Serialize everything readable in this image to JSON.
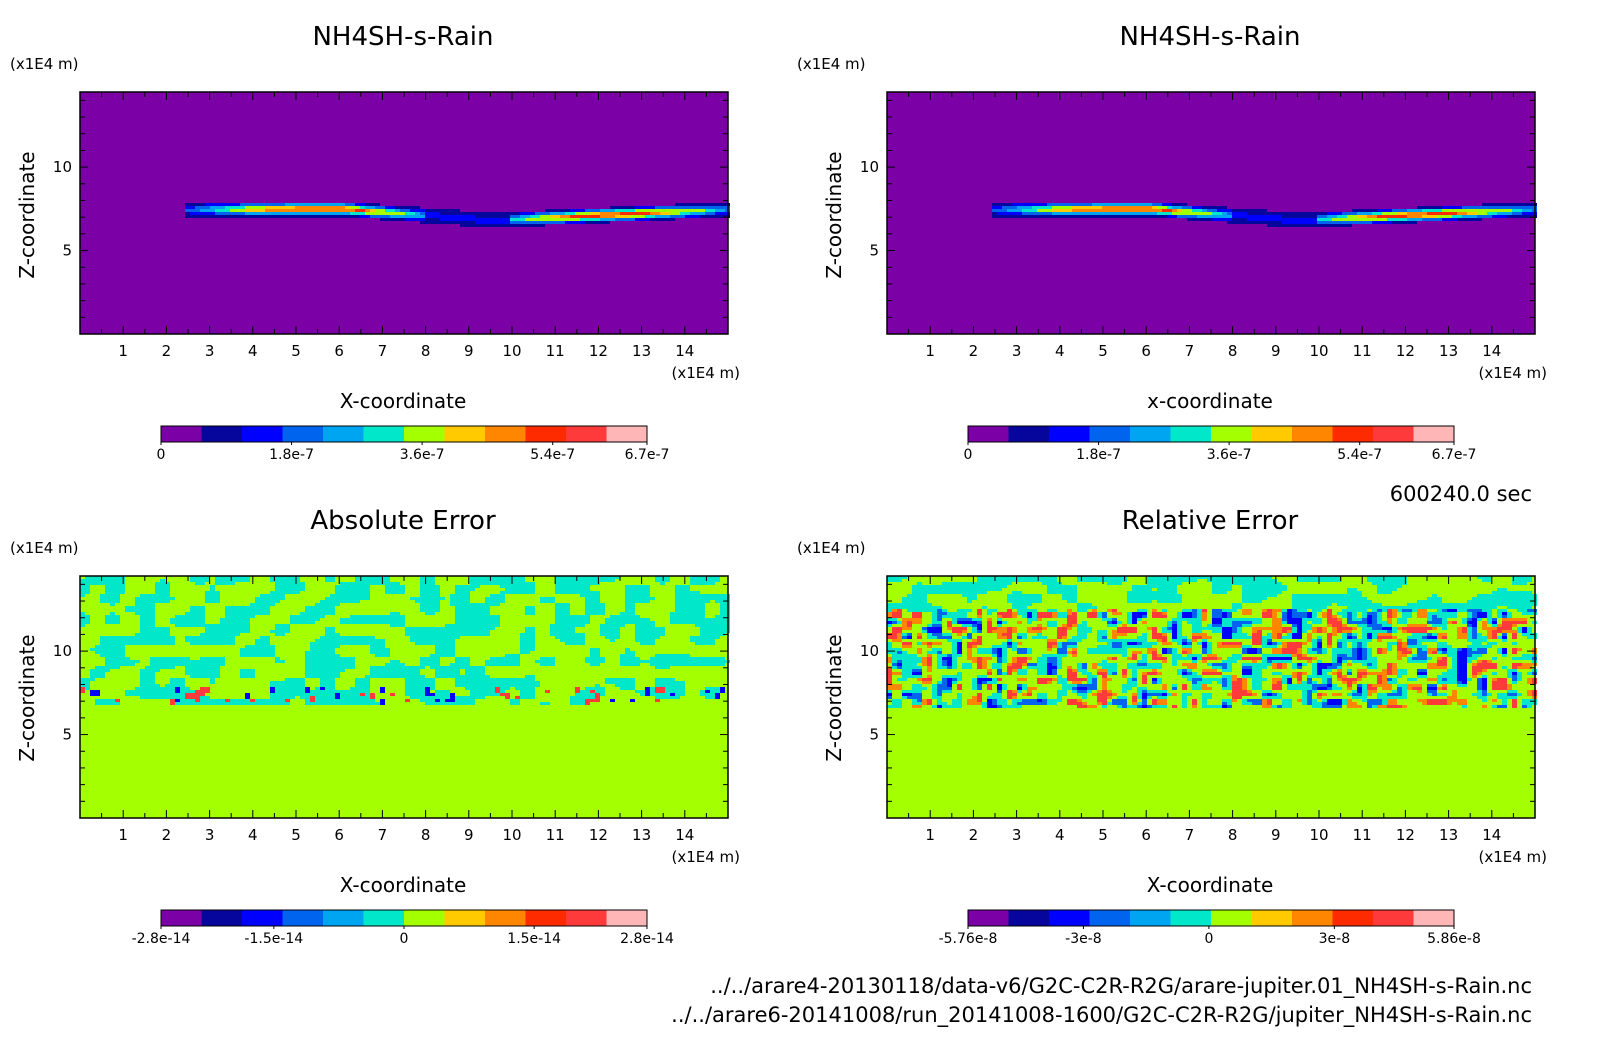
{
  "colormap": [
    "#7b00a6",
    "#06059c",
    "#0000ff",
    "#0064ee",
    "#00a5f2",
    "#00e8c9",
    "#a4ff00",
    "#ffca00",
    "#ff8600",
    "#ff2b00",
    "#ff3a3a",
    "#ffb6b6"
  ],
  "meta": {
    "time_label": "600240.0 sec",
    "file1": "../../arare4-20130118/data-v6/G2C-C2R-R2G/arare-jupiter.01_NH4SH-s-Rain.nc",
    "file2": "../../arare6-20141008/run_20141008-1600/G2C-C2R-R2G/jupiter_NH4SH-s-Rain.nc"
  },
  "chart_data": [
    {
      "type": "heatmap",
      "title": "NH4SH-s-Rain",
      "xlabel": "X-coordinate",
      "ylabel": "Z-coordinate",
      "unit": "(x1E4 m)",
      "xlim": [
        0,
        15
      ],
      "ylim": [
        0,
        14.5
      ],
      "xticks": [
        "1",
        "2",
        "3",
        "4",
        "5",
        "6",
        "7",
        "8",
        "9",
        "10",
        "11",
        "12",
        "13",
        "14"
      ],
      "yticks": [
        "5",
        "10"
      ],
      "field": "rain_band",
      "background_level": 0,
      "colorbar": {
        "min": 0,
        "max": 6.7e-07,
        "tick_labels": [
          "0",
          "1.8e-7",
          "3.6e-7",
          "5.4e-7",
          "6.7e-7"
        ]
      }
    },
    {
      "type": "heatmap",
      "title": "NH4SH-s-Rain",
      "xlabel": "x-coordinate",
      "ylabel": "Z-coordinate",
      "unit": "(x1E4 m)",
      "xlim": [
        0,
        15
      ],
      "ylim": [
        0,
        14.5
      ],
      "xticks": [
        "1",
        "2",
        "3",
        "4",
        "5",
        "6",
        "7",
        "8",
        "9",
        "10",
        "11",
        "12",
        "13",
        "14"
      ],
      "yticks": [
        "5",
        "10"
      ],
      "field": "rain_band",
      "background_level": 0,
      "colorbar": {
        "min": 0,
        "max": 6.7e-07,
        "tick_labels": [
          "0",
          "1.8e-7",
          "3.6e-7",
          "5.4e-7",
          "6.7e-7"
        ]
      }
    },
    {
      "type": "heatmap",
      "title": "Absolute Error",
      "xlabel": "X-coordinate",
      "ylabel": "Z-coordinate",
      "unit": "(x1E4 m)",
      "xlim": [
        0,
        15
      ],
      "ylim": [
        0,
        14.5
      ],
      "xticks": [
        "1",
        "2",
        "3",
        "4",
        "5",
        "6",
        "7",
        "8",
        "9",
        "10",
        "11",
        "12",
        "13",
        "14"
      ],
      "yticks": [
        "5",
        "10"
      ],
      "field": "abs_noise",
      "background_level": 6,
      "noise_top": 14.5,
      "noise_bottom": 6.8,
      "colorbar": {
        "min": -2.8e-14,
        "max": 2.8e-14,
        "tick_labels": [
          "-2.8e-14",
          "-1.5e-14",
          "0",
          "1.5e-14",
          "2.8e-14"
        ]
      }
    },
    {
      "type": "heatmap",
      "title": "Relative Error",
      "xlabel": "X-coordinate",
      "ylabel": "Z-coordinate",
      "unit": "(x1E4 m)",
      "xlim": [
        0,
        15
      ],
      "ylim": [
        0,
        14.5
      ],
      "xticks": [
        "1",
        "2",
        "3",
        "4",
        "5",
        "6",
        "7",
        "8",
        "9",
        "10",
        "11",
        "12",
        "13",
        "14"
      ],
      "yticks": [
        "5",
        "10"
      ],
      "field": "rel_noise",
      "background_level": 6,
      "noise_top": 14.5,
      "noise_bottom": 6.6,
      "colorbar": {
        "min": -5.76e-08,
        "max": 5.86e-08,
        "tick_labels": [
          "-5.76e-8",
          "-3e-8",
          "0",
          "3e-8",
          "5.86e-8"
        ]
      }
    }
  ]
}
